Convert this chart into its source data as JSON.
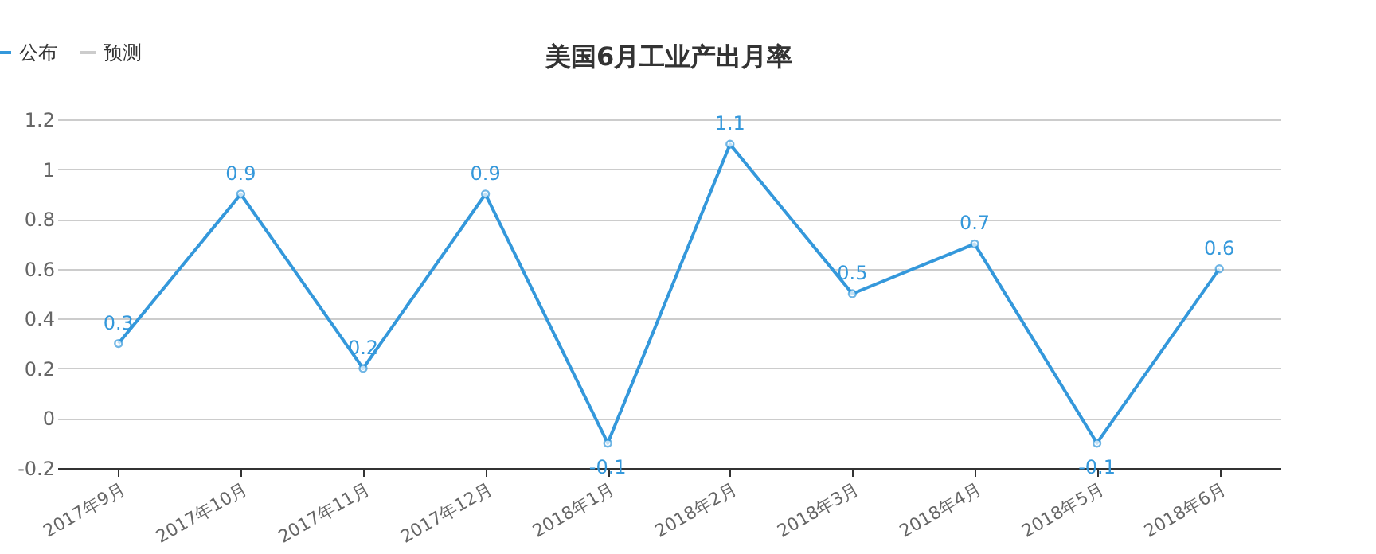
{
  "chart_data": {
    "type": "line",
    "title": "美国6月工业产出月率",
    "categories": [
      "2017年9月",
      "2017年10月",
      "2017年11月",
      "2017年12月",
      "2018年1月",
      "2018年2月",
      "2018年3月",
      "2018年4月",
      "2018年5月",
      "2018年6月"
    ],
    "series": [
      {
        "name": "公布",
        "color": "#3498db",
        "values": [
          0.3,
          0.9,
          0.2,
          0.9,
          -0.1,
          1.1,
          0.5,
          0.7,
          -0.1,
          0.6
        ]
      },
      {
        "name": "预测",
        "color": "#cccccc",
        "values": [
          null,
          null,
          null,
          null,
          null,
          null,
          null,
          null,
          null,
          null
        ]
      }
    ],
    "ylim": [
      -0.2,
      1.2
    ],
    "yticks": [
      -0.2,
      0,
      0.2,
      0.4,
      0.6,
      0.8,
      1,
      1.2
    ],
    "grid": "y",
    "legend": "top left",
    "marker": "circle",
    "line_style": "solid",
    "data_labels": true
  }
}
